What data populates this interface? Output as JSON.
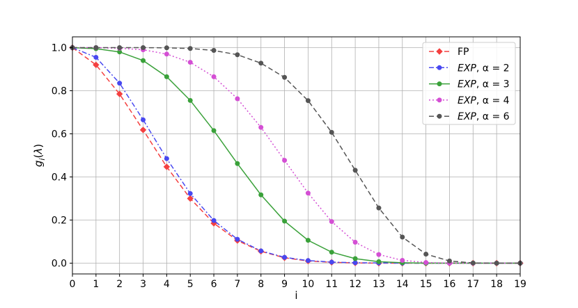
{
  "chart_data": {
    "type": "line",
    "xlabel": "i",
    "ylabel": "g_i(λ)",
    "xlim": [
      0,
      19
    ],
    "ylim": [
      -0.05,
      1.05
    ],
    "x_ticks": [
      "0",
      "1",
      "2",
      "3",
      "4",
      "5",
      "6",
      "7",
      "8",
      "9",
      "10",
      "11",
      "12",
      "13",
      "14",
      "15",
      "16",
      "17",
      "18",
      "19"
    ],
    "y_ticks": [
      "0.0",
      "0.2",
      "0.4",
      "0.6",
      "0.8",
      "1.0"
    ],
    "grid": true,
    "legend_position": "top-right",
    "x": [
      0,
      1,
      2,
      3,
      4,
      5,
      6,
      7,
      8,
      9,
      10,
      11,
      12,
      13,
      14,
      15,
      16,
      17,
      18,
      19
    ],
    "series": [
      {
        "name": "FP",
        "label_plain": "FP",
        "color": "#f44040",
        "dash": "dashed",
        "marker": "diamond",
        "values": [
          1.0,
          0.92,
          0.785,
          0.618,
          0.447,
          0.3,
          0.185,
          0.105,
          0.055,
          0.025,
          0.01,
          0.004,
          0.001,
          0.0,
          0.0,
          0.0,
          0.0,
          0.0,
          0.0,
          0.0
        ]
      },
      {
        "name": "EXP, α = 2",
        "label_ital": "EXP",
        "label_rest": ", α = 2",
        "color": "#4848f0",
        "dash": "dashdot",
        "marker": "circle",
        "values": [
          1.0,
          0.955,
          0.835,
          0.665,
          0.485,
          0.323,
          0.198,
          0.111,
          0.057,
          0.027,
          0.012,
          0.005,
          0.002,
          0.001,
          0.0,
          0.0,
          0.0,
          0.0,
          0.0,
          0.0
        ]
      },
      {
        "name": "EXP, α = 3",
        "label_ital": "EXP",
        "label_rest": ", α = 3",
        "color": "#3aa13a",
        "dash": "solid",
        "marker": "circle",
        "values": [
          1.0,
          0.995,
          0.98,
          0.94,
          0.865,
          0.755,
          0.615,
          0.462,
          0.317,
          0.195,
          0.106,
          0.051,
          0.021,
          0.007,
          0.002,
          0.0,
          0.0,
          0.0,
          0.0,
          0.0
        ]
      },
      {
        "name": "EXP, α = 4",
        "label_ital": "EXP",
        "label_rest": ", α = 4",
        "color": "#d44fd4",
        "dash": "dotted",
        "marker": "circle",
        "values": [
          1.0,
          1.0,
          0.997,
          0.99,
          0.97,
          0.932,
          0.865,
          0.763,
          0.63,
          0.477,
          0.325,
          0.193,
          0.097,
          0.04,
          0.013,
          0.003,
          0.0,
          0.0,
          0.0,
          0.0
        ]
      },
      {
        "name": "EXP, α = 6",
        "label_ital": "EXP",
        "label_rest": ", α = 6",
        "color": "#555555",
        "dash": "dashed",
        "marker": "circle",
        "values": [
          1.0,
          1.0,
          1.0,
          1.0,
          0.999,
          0.996,
          0.987,
          0.967,
          0.928,
          0.862,
          0.754,
          0.607,
          0.431,
          0.256,
          0.121,
          0.042,
          0.01,
          0.001,
          0.0,
          0.0
        ]
      }
    ]
  }
}
